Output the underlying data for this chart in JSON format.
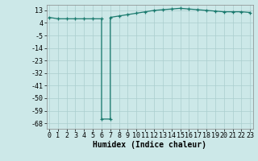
{
  "x_full": [
    0,
    1,
    2,
    3,
    4,
    5,
    6,
    6,
    7,
    7,
    8,
    9,
    10,
    11,
    12,
    13,
    14,
    15,
    16,
    17,
    18,
    19,
    20,
    21,
    22,
    23
  ],
  "y_full": [
    8,
    7,
    7,
    7,
    7,
    7,
    7,
    -65,
    -65,
    8,
    9,
    10,
    11,
    12,
    13,
    13.5,
    14,
    14.5,
    14,
    13.5,
    13,
    12.5,
    12,
    12,
    12,
    11.5
  ],
  "yticks": [
    13,
    4,
    -5,
    -14,
    -23,
    -32,
    -41,
    -50,
    -59,
    -68
  ],
  "xticks": [
    0,
    1,
    2,
    3,
    4,
    5,
    6,
    7,
    8,
    9,
    10,
    11,
    12,
    13,
    14,
    15,
    16,
    17,
    18,
    19,
    20,
    21,
    22,
    23
  ],
  "ylim": [
    -72,
    17
  ],
  "xlim": [
    -0.3,
    23.3
  ],
  "line_color": "#1a7a6e",
  "bg_color": "#cce8e8",
  "grid_color": "#aacece",
  "xlabel": "Humidex (Indice chaleur)",
  "xlabel_fontsize": 7,
  "tick_fontsize": 6,
  "marker": "+",
  "marker_size": 3.5,
  "linewidth": 0.9
}
